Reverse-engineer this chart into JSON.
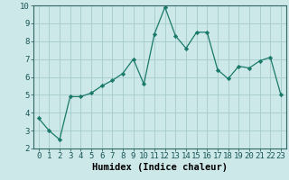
{
  "x": [
    0,
    1,
    2,
    3,
    4,
    5,
    6,
    7,
    8,
    9,
    10,
    11,
    12,
    13,
    14,
    15,
    16,
    17,
    18,
    19,
    20,
    21,
    22,
    23
  ],
  "y": [
    3.7,
    3.0,
    2.5,
    4.9,
    4.9,
    5.1,
    5.5,
    5.8,
    6.2,
    7.0,
    5.6,
    8.4,
    9.9,
    8.3,
    7.6,
    8.5,
    8.5,
    6.4,
    5.9,
    6.6,
    6.5,
    6.9,
    7.1,
    5.0
  ],
  "xlabel": "Humidex (Indice chaleur)",
  "line_color": "#1a7a6a",
  "marker_color": "#1a7a6a",
  "bg_color": "#cce8e8",
  "grid_color": "#aacfcf",
  "axes_bg": "#cce8e8",
  "xlim": [
    -0.5,
    23.5
  ],
  "ylim": [
    2,
    10
  ],
  "xticks": [
    0,
    1,
    2,
    3,
    4,
    5,
    6,
    7,
    8,
    9,
    10,
    11,
    12,
    13,
    14,
    15,
    16,
    17,
    18,
    19,
    20,
    21,
    22,
    23
  ],
  "yticks": [
    2,
    3,
    4,
    5,
    6,
    7,
    8,
    9,
    10
  ],
  "xlabel_fontsize": 7.5,
  "tick_fontsize": 6.5
}
